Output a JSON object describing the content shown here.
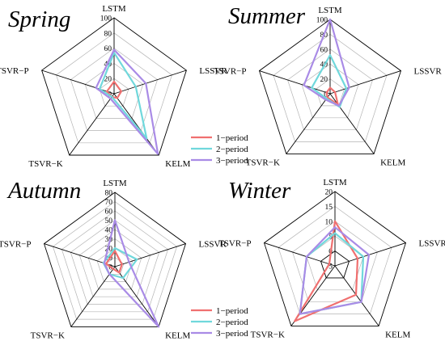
{
  "chart_data": [
    {
      "type": "radar",
      "title": "Spring",
      "axes": [
        "LSTM",
        "LSSVR",
        "KELM",
        "TSVR−K",
        "TSVR−P"
      ],
      "rmax": 100,
      "ticks": [
        "0",
        "20",
        "40",
        "60",
        "80",
        "100"
      ],
      "tick_values": [
        0,
        20,
        40,
        60,
        80,
        100
      ],
      "grid_bold": [
        100
      ],
      "series": [
        {
          "name": "1−period",
          "values": [
            16,
            10,
            7,
            5,
            10
          ]
        },
        {
          "name": "2−period",
          "values": [
            54,
            30,
            73,
            5,
            20
          ]
        },
        {
          "name": "3−period",
          "values": [
            58,
            44,
            98,
            8,
            25
          ]
        }
      ]
    },
    {
      "type": "radar",
      "title": "Summer",
      "axes": [
        "LSTM",
        "LSSVR",
        "KELM",
        "TSVR−K",
        "TSVR−P"
      ],
      "rmax": 100,
      "ticks": [
        "0",
        "20",
        "40",
        "60",
        "80",
        "100"
      ],
      "tick_values": [
        0,
        20,
        40,
        60,
        80,
        100
      ],
      "grid_bold": [
        100
      ],
      "series": [
        {
          "name": "1−period",
          "values": [
            8,
            7,
            18,
            6,
            5
          ]
        },
        {
          "name": "2−period",
          "values": [
            52,
            23,
            22,
            8,
            26
          ]
        },
        {
          "name": "3−period",
          "values": [
            100,
            27,
            20,
            10,
            37
          ]
        }
      ]
    },
    {
      "type": "radar",
      "title": "Autumn",
      "axes": [
        "LSTM",
        "LSSVR",
        "KELM",
        "TSVR−K",
        "TSVR−P"
      ],
      "rmax": 80,
      "ticks": [
        "0",
        "10",
        "20",
        "30",
        "40",
        "50",
        "60",
        "70",
        "80"
      ],
      "tick_values": [
        0,
        10,
        20,
        30,
        40,
        50,
        60,
        70,
        80
      ],
      "grid_bold": [
        80
      ],
      "series": [
        {
          "name": "1−period",
          "values": [
            17,
            8,
            8,
            3,
            10
          ]
        },
        {
          "name": "2−period",
          "values": [
            20,
            25,
            15,
            10,
            13
          ]
        },
        {
          "name": "3−period",
          "values": [
            50,
            16,
            80,
            10,
            12
          ]
        }
      ]
    },
    {
      "type": "radar",
      "title": "Winter",
      "axes": [
        "LSTM",
        "LSSVR",
        "KELM",
        "TSVR−K",
        "TSVR−P"
      ],
      "rmin": -5,
      "rmax": 20,
      "ticks": [
        "-5",
        "0",
        "5",
        "10",
        "15",
        "20"
      ],
      "tick_values": [
        -5,
        0,
        5,
        10,
        15,
        20
      ],
      "grid_bold": [
        0,
        20
      ],
      "series": [
        {
          "name": "1−period",
          "values": [
            10,
            3,
            7,
            18,
            -3
          ]
        },
        {
          "name": "2−period",
          "values": [
            6,
            5,
            10,
            15,
            5
          ]
        },
        {
          "name": "3−period",
          "values": [
            8,
            7,
            10,
            15,
            5
          ]
        }
      ]
    }
  ],
  "legend": [
    {
      "name": "1−period",
      "color": "#f07070"
    },
    {
      "name": "2−period",
      "color": "#70d8dc"
    },
    {
      "name": "3−period",
      "color": "#a98be6"
    }
  ],
  "colors": {
    "grid": "#b4b4b4",
    "axis": "#000000"
  }
}
